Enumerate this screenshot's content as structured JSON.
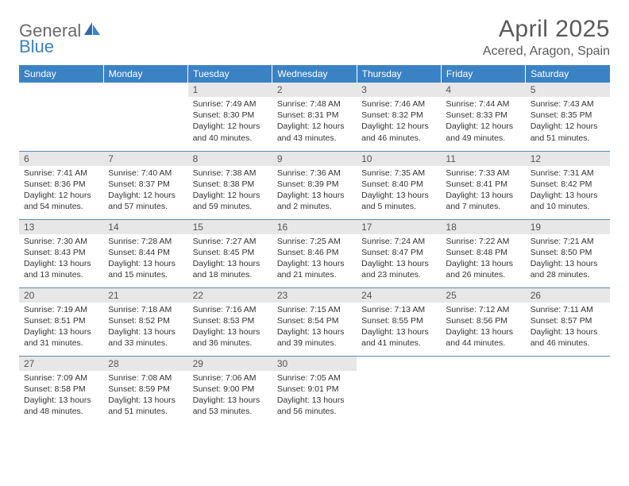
{
  "brand": {
    "part1": "General",
    "part2": "Blue"
  },
  "title": "April 2025",
  "location": "Acered, Aragon, Spain",
  "colors": {
    "header_bg": "#3b82c4",
    "header_text": "#ffffff",
    "daynum_bg": "#e7e7e7",
    "row_border": "#5a8bb5",
    "brand_gray": "#6a6a6a",
    "brand_blue": "#3b82c4",
    "text": "#333333"
  },
  "weekdays": [
    "Sunday",
    "Monday",
    "Tuesday",
    "Wednesday",
    "Thursday",
    "Friday",
    "Saturday"
  ],
  "weeks": [
    [
      null,
      null,
      {
        "n": "1",
        "sr": "7:49 AM",
        "ss": "8:30 PM",
        "dl": "12 hours and 40 minutes."
      },
      {
        "n": "2",
        "sr": "7:48 AM",
        "ss": "8:31 PM",
        "dl": "12 hours and 43 minutes."
      },
      {
        "n": "3",
        "sr": "7:46 AM",
        "ss": "8:32 PM",
        "dl": "12 hours and 46 minutes."
      },
      {
        "n": "4",
        "sr": "7:44 AM",
        "ss": "8:33 PM",
        "dl": "12 hours and 49 minutes."
      },
      {
        "n": "5",
        "sr": "7:43 AM",
        "ss": "8:35 PM",
        "dl": "12 hours and 51 minutes."
      }
    ],
    [
      {
        "n": "6",
        "sr": "7:41 AM",
        "ss": "8:36 PM",
        "dl": "12 hours and 54 minutes."
      },
      {
        "n": "7",
        "sr": "7:40 AM",
        "ss": "8:37 PM",
        "dl": "12 hours and 57 minutes."
      },
      {
        "n": "8",
        "sr": "7:38 AM",
        "ss": "8:38 PM",
        "dl": "12 hours and 59 minutes."
      },
      {
        "n": "9",
        "sr": "7:36 AM",
        "ss": "8:39 PM",
        "dl": "13 hours and 2 minutes."
      },
      {
        "n": "10",
        "sr": "7:35 AM",
        "ss": "8:40 PM",
        "dl": "13 hours and 5 minutes."
      },
      {
        "n": "11",
        "sr": "7:33 AM",
        "ss": "8:41 PM",
        "dl": "13 hours and 7 minutes."
      },
      {
        "n": "12",
        "sr": "7:31 AM",
        "ss": "8:42 PM",
        "dl": "13 hours and 10 minutes."
      }
    ],
    [
      {
        "n": "13",
        "sr": "7:30 AM",
        "ss": "8:43 PM",
        "dl": "13 hours and 13 minutes."
      },
      {
        "n": "14",
        "sr": "7:28 AM",
        "ss": "8:44 PM",
        "dl": "13 hours and 15 minutes."
      },
      {
        "n": "15",
        "sr": "7:27 AM",
        "ss": "8:45 PM",
        "dl": "13 hours and 18 minutes."
      },
      {
        "n": "16",
        "sr": "7:25 AM",
        "ss": "8:46 PM",
        "dl": "13 hours and 21 minutes."
      },
      {
        "n": "17",
        "sr": "7:24 AM",
        "ss": "8:47 PM",
        "dl": "13 hours and 23 minutes."
      },
      {
        "n": "18",
        "sr": "7:22 AM",
        "ss": "8:48 PM",
        "dl": "13 hours and 26 minutes."
      },
      {
        "n": "19",
        "sr": "7:21 AM",
        "ss": "8:50 PM",
        "dl": "13 hours and 28 minutes."
      }
    ],
    [
      {
        "n": "20",
        "sr": "7:19 AM",
        "ss": "8:51 PM",
        "dl": "13 hours and 31 minutes."
      },
      {
        "n": "21",
        "sr": "7:18 AM",
        "ss": "8:52 PM",
        "dl": "13 hours and 33 minutes."
      },
      {
        "n": "22",
        "sr": "7:16 AM",
        "ss": "8:53 PM",
        "dl": "13 hours and 36 minutes."
      },
      {
        "n": "23",
        "sr": "7:15 AM",
        "ss": "8:54 PM",
        "dl": "13 hours and 39 minutes."
      },
      {
        "n": "24",
        "sr": "7:13 AM",
        "ss": "8:55 PM",
        "dl": "13 hours and 41 minutes."
      },
      {
        "n": "25",
        "sr": "7:12 AM",
        "ss": "8:56 PM",
        "dl": "13 hours and 44 minutes."
      },
      {
        "n": "26",
        "sr": "7:11 AM",
        "ss": "8:57 PM",
        "dl": "13 hours and 46 minutes."
      }
    ],
    [
      {
        "n": "27",
        "sr": "7:09 AM",
        "ss": "8:58 PM",
        "dl": "13 hours and 48 minutes."
      },
      {
        "n": "28",
        "sr": "7:08 AM",
        "ss": "8:59 PM",
        "dl": "13 hours and 51 minutes."
      },
      {
        "n": "29",
        "sr": "7:06 AM",
        "ss": "9:00 PM",
        "dl": "13 hours and 53 minutes."
      },
      {
        "n": "30",
        "sr": "7:05 AM",
        "ss": "9:01 PM",
        "dl": "13 hours and 56 minutes."
      },
      null,
      null,
      null
    ]
  ],
  "labels": {
    "sunrise": "Sunrise:",
    "sunset": "Sunset:",
    "daylight": "Daylight:"
  }
}
